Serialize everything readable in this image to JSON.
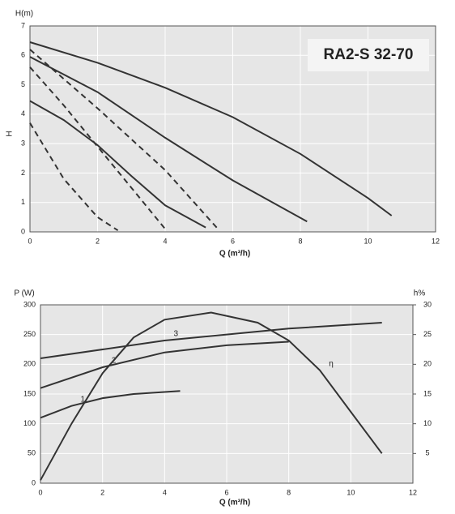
{
  "chart_data": [
    {
      "type": "line",
      "title": "RA2-S 32-70",
      "y_label_top": "H(m)",
      "y_label": "H",
      "x_label": "Q (m³/h)",
      "xlim": [
        0,
        12
      ],
      "xticks": [
        0,
        2,
        4,
        6,
        8,
        10,
        12
      ],
      "ylim": [
        0,
        7
      ],
      "yticks": [
        0,
        1,
        2,
        3,
        4,
        5,
        6,
        7
      ],
      "grid": true,
      "series": [
        {
          "color": "#333333",
          "dashed": false,
          "x": [
            0,
            2,
            4,
            6,
            8,
            10,
            10.7
          ],
          "values": [
            6.45,
            5.75,
            4.9,
            3.9,
            2.65,
            1.15,
            0.55
          ]
        },
        {
          "color": "#333333",
          "dashed": false,
          "x": [
            0,
            2,
            4,
            6,
            8.2
          ],
          "values": [
            5.95,
            4.75,
            3.2,
            1.75,
            0.35
          ]
        },
        {
          "color": "#333333",
          "dashed": false,
          "x": [
            0,
            1,
            2,
            3,
            4,
            5.2
          ],
          "values": [
            4.45,
            3.8,
            2.95,
            1.9,
            0.9,
            0.15
          ]
        },
        {
          "color": "#333333",
          "dashed": true,
          "x": [
            0,
            2,
            4,
            5.6
          ],
          "values": [
            6.2,
            4.2,
            2.1,
            0.05
          ]
        },
        {
          "color": "#333333",
          "dashed": true,
          "x": [
            0,
            1,
            2,
            3,
            4
          ],
          "values": [
            5.6,
            4.3,
            2.9,
            1.5,
            0.1
          ]
        },
        {
          "color": "#333333",
          "dashed": true,
          "x": [
            0,
            1,
            2,
            2.6
          ],
          "values": [
            3.7,
            1.8,
            0.5,
            0.05
          ]
        }
      ]
    },
    {
      "type": "line",
      "y_label_top": "P (W)",
      "y2_label_top": "h%",
      "x_label": "Q (m³/h)",
      "xlim": [
        0,
        12
      ],
      "xticks": [
        0,
        2,
        4,
        6,
        8,
        10,
        12
      ],
      "ylim": [
        0,
        300
      ],
      "yticks": [
        0,
        50,
        100,
        150,
        200,
        250,
        300
      ],
      "y2lim": [
        0,
        30
      ],
      "y2ticks": [
        5,
        10,
        15,
        20,
        25,
        30
      ],
      "grid": true,
      "series": [
        {
          "name": "1",
          "color": "#333333",
          "dashed": false,
          "x": [
            0,
            1,
            2,
            3,
            4.5
          ],
          "values": [
            110,
            130,
            143,
            150,
            155
          ]
        },
        {
          "name": "2",
          "color": "#333333",
          "dashed": false,
          "x": [
            0,
            2,
            4,
            6,
            8
          ],
          "values": [
            160,
            195,
            220,
            232,
            238
          ]
        },
        {
          "name": "3",
          "color": "#333333",
          "dashed": false,
          "x": [
            0,
            4,
            8,
            11
          ],
          "values": [
            210,
            240,
            260,
            270
          ]
        },
        {
          "name": "η",
          "axis": "y2",
          "color": "#333333",
          "dashed": false,
          "x": [
            0,
            1,
            2,
            3,
            4,
            5.5,
            7,
            8,
            9,
            10,
            11
          ],
          "values": [
            0.5,
            10,
            18.5,
            24.5,
            27.5,
            28.7,
            27,
            24,
            19,
            12,
            5
          ]
        }
      ]
    }
  ]
}
